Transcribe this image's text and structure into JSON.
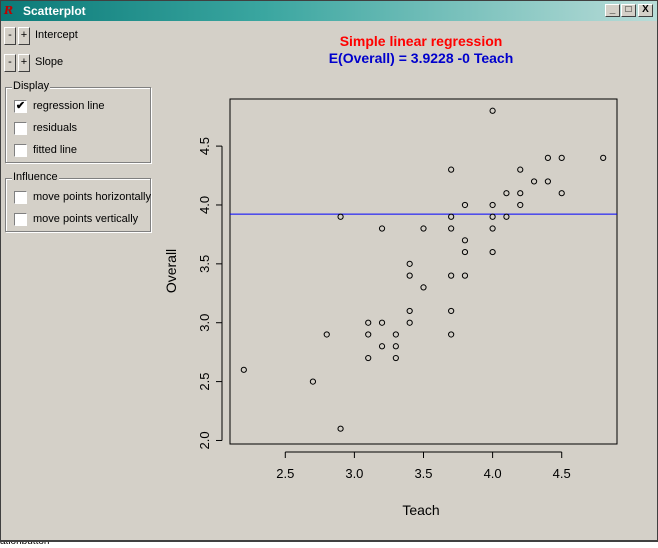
{
  "window": {
    "title": "Scatterplot",
    "app_icon_text": "R",
    "minimize_glyph": "_",
    "maximize_glyph": "□",
    "close_glyph": "X"
  },
  "controls": {
    "intercept": {
      "minus": "-",
      "plus": "+",
      "label": "Intercept"
    },
    "slope": {
      "minus": "-",
      "plus": "+",
      "label": "Slope"
    }
  },
  "display": {
    "title": "Display",
    "items": [
      {
        "label": "regression line",
        "checked": true
      },
      {
        "label": "residuals",
        "checked": false
      },
      {
        "label": "fitted line",
        "checked": false
      }
    ]
  },
  "influence": {
    "title": "Influence",
    "items": [
      {
        "label": "move points horizontally",
        "checked": false
      },
      {
        "label": "move points vertically",
        "checked": false
      }
    ]
  },
  "bottom_text": "ationbutton",
  "chart_data": {
    "type": "scatter",
    "title": "Simple linear regression",
    "subtitle": "E(Overall) = 3.9228 -0 Teach",
    "title_color": "#ff0000",
    "subtitle_color": "#0000cc",
    "xlabel": "Teach",
    "ylabel": "Overall",
    "xlim": [
      2.1,
      4.9
    ],
    "ylim": [
      1.97,
      4.9
    ],
    "xticks": [
      2.5,
      3.0,
      3.5,
      4.0,
      4.5
    ],
    "xtick_labels": [
      "2.5",
      "3.0",
      "3.5",
      "4.0",
      "4.5"
    ],
    "yticks": [
      2.0,
      2.5,
      3.0,
      3.5,
      4.0,
      4.5
    ],
    "ytick_labels": [
      "2.0",
      "2.5",
      "3.0",
      "3.5",
      "4.0",
      "4.5"
    ],
    "grid": false,
    "regression_line": {
      "intercept": 3.9228,
      "slope": 0,
      "color": "#0000ff"
    },
    "points": [
      [
        2.2,
        2.6
      ],
      [
        2.7,
        2.5
      ],
      [
        2.8,
        2.9
      ],
      [
        2.9,
        3.9
      ],
      [
        2.9,
        2.1
      ],
      [
        3.1,
        3.0
      ],
      [
        3.1,
        2.9
      ],
      [
        3.1,
        2.7
      ],
      [
        3.2,
        3.8
      ],
      [
        3.2,
        3.0
      ],
      [
        3.2,
        2.8
      ],
      [
        3.3,
        2.9
      ],
      [
        3.3,
        2.8
      ],
      [
        3.3,
        2.7
      ],
      [
        3.4,
        3.5
      ],
      [
        3.4,
        3.4
      ],
      [
        3.4,
        3.1
      ],
      [
        3.4,
        3.0
      ],
      [
        3.5,
        3.8
      ],
      [
        3.5,
        3.3
      ],
      [
        3.7,
        4.3
      ],
      [
        3.7,
        3.9
      ],
      [
        3.7,
        3.8
      ],
      [
        3.7,
        3.4
      ],
      [
        3.7,
        3.1
      ],
      [
        3.7,
        2.9
      ],
      [
        3.8,
        4.0
      ],
      [
        3.8,
        3.7
      ],
      [
        3.8,
        3.6
      ],
      [
        3.8,
        3.4
      ],
      [
        4.0,
        4.8
      ],
      [
        4.0,
        4.0
      ],
      [
        4.0,
        3.9
      ],
      [
        4.0,
        3.8
      ],
      [
        4.0,
        3.6
      ],
      [
        4.1,
        4.1
      ],
      [
        4.1,
        3.9
      ],
      [
        4.2,
        4.3
      ],
      [
        4.2,
        4.1
      ],
      [
        4.2,
        4.0
      ],
      [
        4.3,
        4.2
      ],
      [
        4.4,
        4.4
      ],
      [
        4.4,
        4.2
      ],
      [
        4.5,
        4.4
      ],
      [
        4.5,
        4.1
      ],
      [
        4.8,
        4.4
      ]
    ]
  }
}
